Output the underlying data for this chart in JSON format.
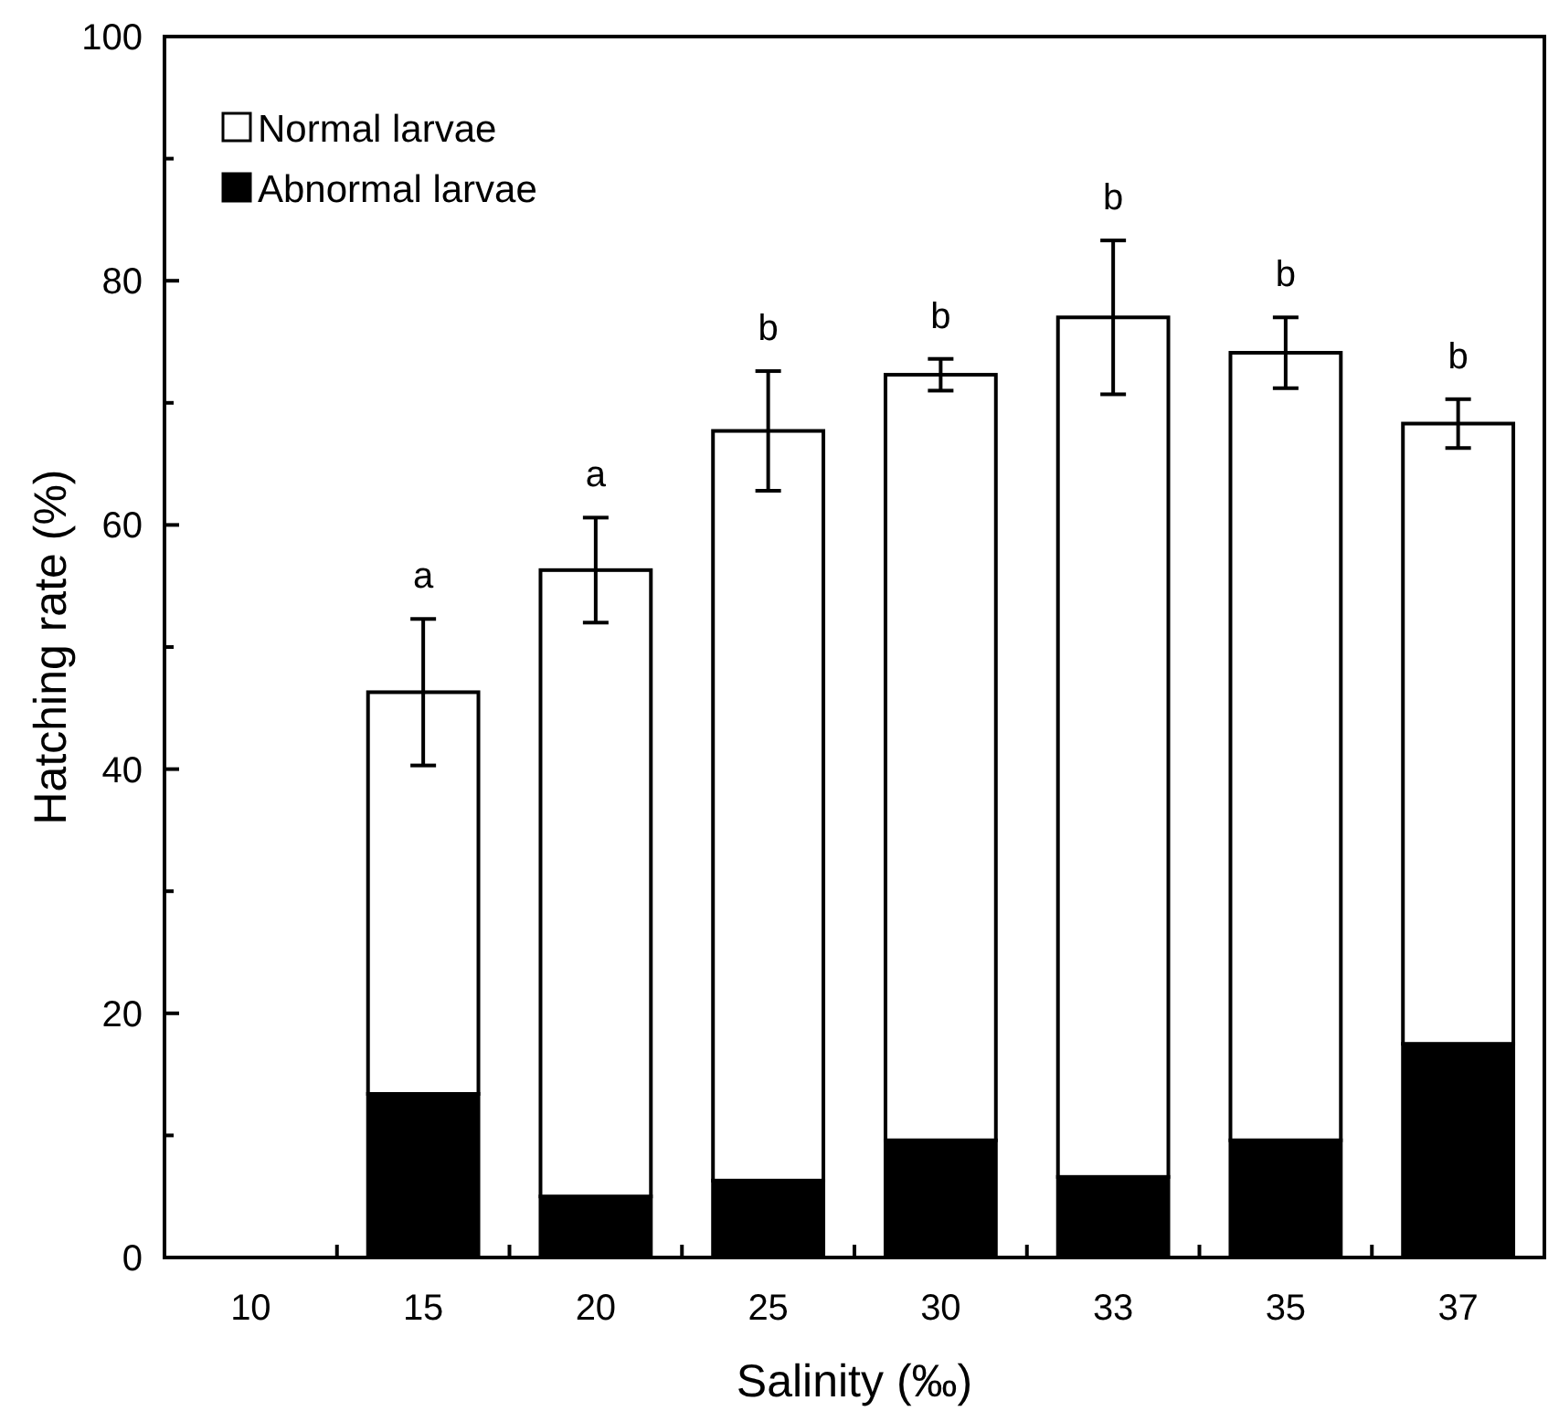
{
  "chart_data": {
    "type": "bar",
    "xlabel": "Salinity (‰)",
    "ylabel": "Hatching rate (%)",
    "categories": [
      "10",
      "15",
      "20",
      "25",
      "30",
      "33",
      "35",
      "37"
    ],
    "stacked": true,
    "series": [
      {
        "name": "Abnormal larvae",
        "color": "#000000",
        "values": [
          null,
          13.4,
          5.0,
          6.3,
          9.6,
          6.6,
          9.6,
          17.5
        ]
      },
      {
        "name": "Normal larvae",
        "color": "#ffffff",
        "values": [
          null,
          32.9,
          51.3,
          61.4,
          62.7,
          70.4,
          64.5,
          50.8
        ],
        "errors": [
          null,
          6,
          4.3,
          4.9,
          1.3,
          6.3,
          2.9,
          2
        ]
      }
    ],
    "ylim": [
      0,
      100
    ],
    "yticks": [
      0,
      {
        "value": 10,
        "label": null
      },
      20,
      {
        "value": 30,
        "label": null
      },
      40,
      {
        "value": 50,
        "label": null
      },
      60,
      {
        "value": 70,
        "label": null
      },
      80,
      {
        "value": 90,
        "label": null
      },
      100
    ],
    "annotations": [
      "a",
      "a",
      "b",
      "b",
      "b",
      "b",
      "b"
    ],
    "legend": "top left"
  }
}
